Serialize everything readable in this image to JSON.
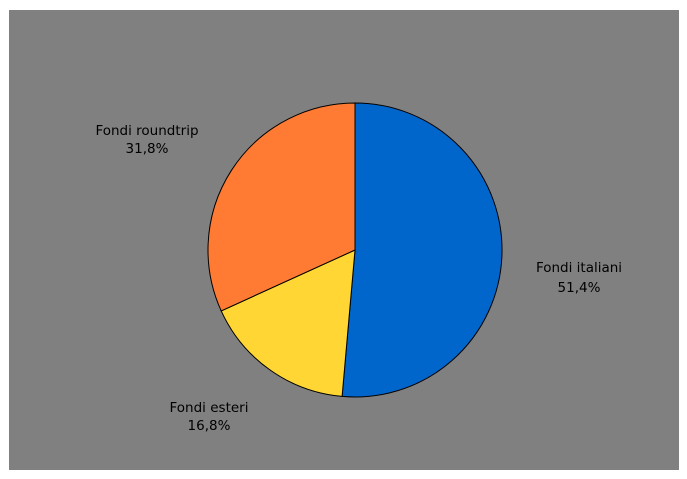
{
  "chart_data": {
    "type": "pie",
    "background": "#808080",
    "start_angle_deg": 0,
    "direction": "clockwise",
    "slices": [
      {
        "name": "Fondi italiani",
        "value": 51.4,
        "value_label": "51,4%",
        "color": "#0066CC"
      },
      {
        "name": "Fondi esteri",
        "value": 16.8,
        "value_label": "16,8%",
        "color": "#FFD633"
      },
      {
        "name": "Fondi roundtrip",
        "value": 31.8,
        "value_label": "31,8%",
        "color": "#FF7A33"
      }
    ]
  }
}
